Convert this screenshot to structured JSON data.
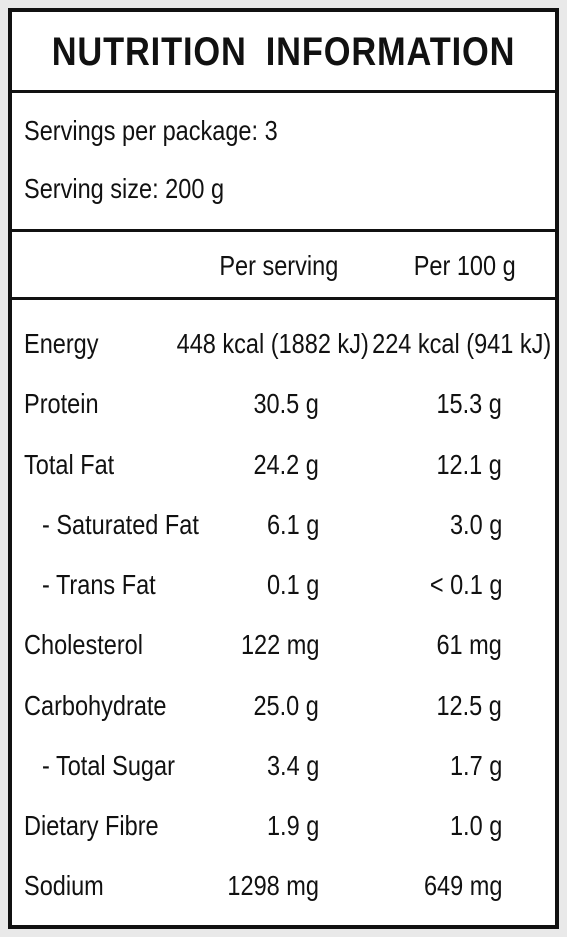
{
  "title": "NUTRITION  INFORMATION",
  "servings_per_package": "Servings per package: 3",
  "serving_size": "Serving size: 200 g",
  "columns": {
    "per_serving": "Per serving",
    "per_100g": "Per 100 g"
  },
  "rows": [
    {
      "label": "Energy",
      "per_serving": "448 kcal (1882 kJ)",
      "per_100g": "224 kcal (941 kJ)"
    },
    {
      "label": "Protein",
      "per_serving": "30.5 g",
      "per_100g": "15.3 g"
    },
    {
      "label": "Total Fat",
      "per_serving": "24.2 g",
      "per_100g": "12.1 g"
    },
    {
      "label": "-  Saturated Fat",
      "per_serving": "6.1 g",
      "per_100g": "3.0 g"
    },
    {
      "label": "-  Trans Fat",
      "per_serving": "0.1 g",
      "per_100g": "< 0.1 g"
    },
    {
      "label": "Cholesterol",
      "per_serving": "122 mg",
      "per_100g": "61 mg"
    },
    {
      "label": "Carbohydrate",
      "per_serving": "25.0 g",
      "per_100g": "12.5 g"
    },
    {
      "label": "-  Total Sugar",
      "per_serving": "3.4 g",
      "per_100g": "1.7 g"
    },
    {
      "label": "Dietary Fibre",
      "per_serving": "1.9 g",
      "per_100g": "1.0 g"
    },
    {
      "label": "Sodium",
      "per_serving": "1298 mg",
      "per_100g": "649 mg"
    }
  ]
}
